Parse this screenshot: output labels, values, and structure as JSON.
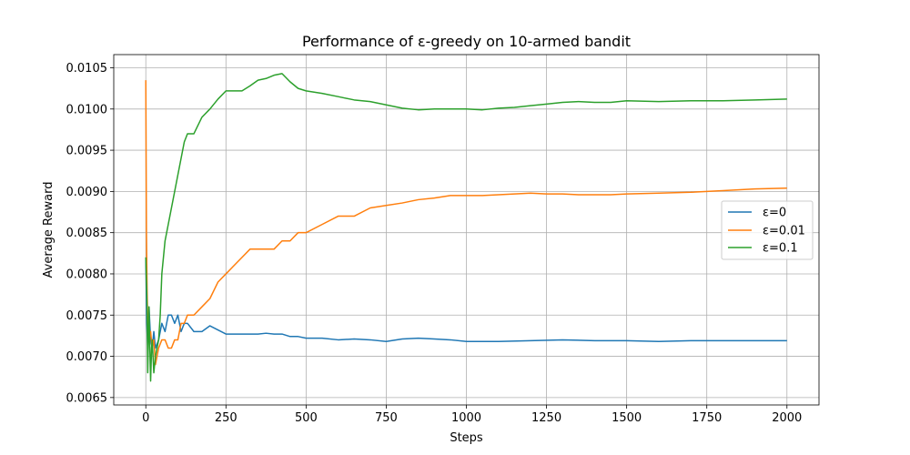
{
  "chart_data": {
    "type": "line",
    "title": "Performance of ε-greedy on 10-armed bandit",
    "xlabel": "Steps",
    "ylabel": "Average Reward",
    "xlim": [
      -100,
      2100
    ],
    "ylim": [
      0.00641,
      0.01066
    ],
    "xticks": [
      0,
      250,
      500,
      750,
      1000,
      1250,
      1500,
      1750,
      2000
    ],
    "yticks": [
      0.0065,
      0.007,
      0.0075,
      0.008,
      0.0085,
      0.009,
      0.0095,
      0.01,
      0.0105
    ],
    "ytick_labels": [
      "0.0065",
      "0.0070",
      "0.0075",
      "0.0080",
      "0.0085",
      "0.0090",
      "0.0095",
      "0.0100",
      "0.0105"
    ],
    "grid": true,
    "legend_position": "center-right",
    "series": [
      {
        "name": "ε=0",
        "color": "#1f77b4",
        "points": [
          [
            0,
            0.0082
          ],
          [
            3,
            0.0074
          ],
          [
            6,
            0.0071
          ],
          [
            10,
            0.0076
          ],
          [
            15,
            0.0072
          ],
          [
            20,
            0.0071
          ],
          [
            25,
            0.0073
          ],
          [
            30,
            0.0071
          ],
          [
            40,
            0.0072
          ],
          [
            50,
            0.0074
          ],
          [
            60,
            0.0073
          ],
          [
            70,
            0.0075
          ],
          [
            80,
            0.0075
          ],
          [
            90,
            0.0074
          ],
          [
            100,
            0.0075
          ],
          [
            110,
            0.0073
          ],
          [
            120,
            0.0074
          ],
          [
            130,
            0.0074
          ],
          [
            150,
            0.0073
          ],
          [
            175,
            0.0073
          ],
          [
            200,
            0.00737
          ],
          [
            225,
            0.00732
          ],
          [
            250,
            0.00727
          ],
          [
            275,
            0.00727
          ],
          [
            300,
            0.00727
          ],
          [
            325,
            0.00727
          ],
          [
            350,
            0.00727
          ],
          [
            375,
            0.00728
          ],
          [
            400,
            0.00727
          ],
          [
            425,
            0.00727
          ],
          [
            450,
            0.00724
          ],
          [
            475,
            0.00724
          ],
          [
            500,
            0.00722
          ],
          [
            550,
            0.00722
          ],
          [
            600,
            0.0072
          ],
          [
            650,
            0.00721
          ],
          [
            700,
            0.0072
          ],
          [
            750,
            0.00718
          ],
          [
            800,
            0.00721
          ],
          [
            850,
            0.00722
          ],
          [
            900,
            0.00721
          ],
          [
            950,
            0.0072
          ],
          [
            1000,
            0.00718
          ],
          [
            1100,
            0.00718
          ],
          [
            1200,
            0.00719
          ],
          [
            1300,
            0.0072
          ],
          [
            1400,
            0.00719
          ],
          [
            1500,
            0.00719
          ],
          [
            1600,
            0.00718
          ],
          [
            1700,
            0.00719
          ],
          [
            1800,
            0.00719
          ],
          [
            1900,
            0.00719
          ],
          [
            2000,
            0.00719
          ]
        ]
      },
      {
        "name": "ε=0.01",
        "color": "#ff7f0e",
        "points": [
          [
            0,
            0.01035
          ],
          [
            2,
            0.0085
          ],
          [
            4,
            0.0078
          ],
          [
            6,
            0.0074
          ],
          [
            10,
            0.0072
          ],
          [
            15,
            0.0073
          ],
          [
            20,
            0.0071
          ],
          [
            25,
            0.0072
          ],
          [
            30,
            0.0069
          ],
          [
            40,
            0.0071
          ],
          [
            50,
            0.0072
          ],
          [
            60,
            0.0072
          ],
          [
            70,
            0.0071
          ],
          [
            80,
            0.0071
          ],
          [
            90,
            0.0072
          ],
          [
            100,
            0.0072
          ],
          [
            110,
            0.0074
          ],
          [
            120,
            0.0074
          ],
          [
            130,
            0.0075
          ],
          [
            140,
            0.0075
          ],
          [
            150,
            0.0075
          ],
          [
            175,
            0.0076
          ],
          [
            200,
            0.0077
          ],
          [
            225,
            0.0079
          ],
          [
            250,
            0.008
          ],
          [
            275,
            0.0081
          ],
          [
            300,
            0.0082
          ],
          [
            325,
            0.0083
          ],
          [
            350,
            0.0083
          ],
          [
            375,
            0.0083
          ],
          [
            400,
            0.0083
          ],
          [
            425,
            0.0084
          ],
          [
            450,
            0.0084
          ],
          [
            475,
            0.0085
          ],
          [
            500,
            0.0085
          ],
          [
            550,
            0.0086
          ],
          [
            600,
            0.0087
          ],
          [
            650,
            0.0087
          ],
          [
            700,
            0.0088
          ],
          [
            750,
            0.00883
          ],
          [
            800,
            0.00886
          ],
          [
            850,
            0.0089
          ],
          [
            900,
            0.00892
          ],
          [
            950,
            0.00895
          ],
          [
            1000,
            0.00895
          ],
          [
            1050,
            0.00895
          ],
          [
            1100,
            0.00896
          ],
          [
            1150,
            0.00897
          ],
          [
            1200,
            0.00898
          ],
          [
            1250,
            0.00897
          ],
          [
            1300,
            0.00897
          ],
          [
            1350,
            0.00896
          ],
          [
            1400,
            0.00896
          ],
          [
            1450,
            0.00896
          ],
          [
            1500,
            0.00897
          ],
          [
            1600,
            0.00898
          ],
          [
            1700,
            0.00899
          ],
          [
            1800,
            0.00901
          ],
          [
            1900,
            0.00903
          ],
          [
            2000,
            0.00904
          ]
        ]
      },
      {
        "name": "ε=0.1",
        "color": "#2ca02c",
        "points": [
          [
            0,
            0.0082
          ],
          [
            2,
            0.0079
          ],
          [
            4,
            0.0076
          ],
          [
            6,
            0.0068
          ],
          [
            8,
            0.0072
          ],
          [
            10,
            0.0076
          ],
          [
            12,
            0.0072
          ],
          [
            15,
            0.0067
          ],
          [
            18,
            0.0071
          ],
          [
            20,
            0.0072
          ],
          [
            25,
            0.0068
          ],
          [
            30,
            0.007
          ],
          [
            35,
            0.0071
          ],
          [
            40,
            0.0072
          ],
          [
            45,
            0.0075
          ],
          [
            50,
            0.008
          ],
          [
            55,
            0.0082
          ],
          [
            60,
            0.0084
          ],
          [
            70,
            0.0086
          ],
          [
            80,
            0.0088
          ],
          [
            90,
            0.009
          ],
          [
            100,
            0.0092
          ],
          [
            110,
            0.0094
          ],
          [
            120,
            0.0096
          ],
          [
            130,
            0.0097
          ],
          [
            140,
            0.0097
          ],
          [
            150,
            0.0097
          ],
          [
            175,
            0.0099
          ],
          [
            200,
            0.01
          ],
          [
            225,
            0.01012
          ],
          [
            250,
            0.01022
          ],
          [
            275,
            0.01022
          ],
          [
            300,
            0.01022
          ],
          [
            325,
            0.01028
          ],
          [
            350,
            0.01035
          ],
          [
            375,
            0.01037
          ],
          [
            400,
            0.01041
          ],
          [
            425,
            0.01043
          ],
          [
            450,
            0.01033
          ],
          [
            475,
            0.01025
          ],
          [
            500,
            0.01022
          ],
          [
            550,
            0.01019
          ],
          [
            600,
            0.01015
          ],
          [
            650,
            0.01011
          ],
          [
            700,
            0.01009
          ],
          [
            750,
            0.01005
          ],
          [
            800,
            0.01001
          ],
          [
            850,
            0.00999
          ],
          [
            900,
            0.01
          ],
          [
            950,
            0.01
          ],
          [
            1000,
            0.01
          ],
          [
            1050,
            0.00999
          ],
          [
            1100,
            0.01001
          ],
          [
            1150,
            0.01002
          ],
          [
            1200,
            0.01004
          ],
          [
            1250,
            0.01006
          ],
          [
            1300,
            0.01008
          ],
          [
            1350,
            0.01009
          ],
          [
            1400,
            0.01008
          ],
          [
            1450,
            0.01008
          ],
          [
            1500,
            0.0101
          ],
          [
            1600,
            0.01009
          ],
          [
            1700,
            0.0101
          ],
          [
            1800,
            0.0101
          ],
          [
            1900,
            0.01011
          ],
          [
            2000,
            0.01012
          ]
        ]
      }
    ]
  }
}
